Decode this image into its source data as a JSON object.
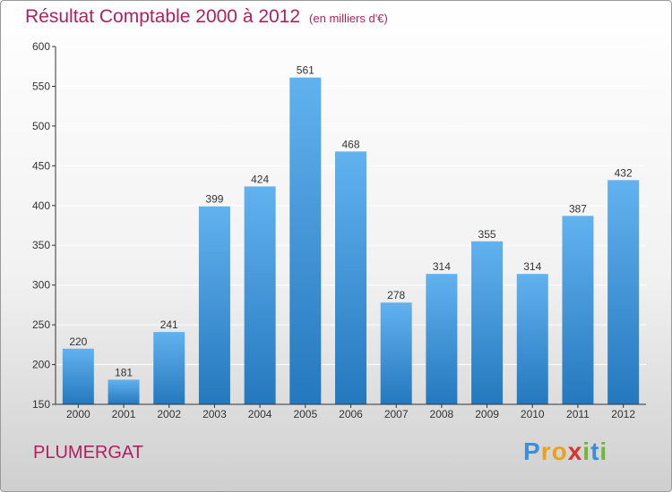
{
  "title": "Résultat Comptable 2000 à 2012",
  "unit_note": "(en milliers d'€)",
  "commune": "PLUMERGAT",
  "logo": {
    "letters": [
      "P",
      "r",
      "o",
      "x",
      "i",
      "t",
      "i"
    ],
    "colors": [
      "#3a8fd8",
      "#e9a11e",
      "#e9a11e",
      "#d9332a",
      "#6fb73c",
      "#3a8fd8",
      "#6fb73c"
    ]
  },
  "colors": {
    "title": "#b0205e",
    "bar_top": "#61b2ef",
    "bar_bottom": "#2478bd",
    "axis": "#333333",
    "grid": "#ffffff"
  },
  "chart_data": {
    "type": "bar",
    "title": "Résultat Comptable 2000 à 2012",
    "categories": [
      "2000",
      "2001",
      "2002",
      "2003",
      "2004",
      "2005",
      "2006",
      "2007",
      "2008",
      "2009",
      "2010",
      "2011",
      "2012"
    ],
    "values": [
      220,
      181,
      241,
      399,
      424,
      561,
      468,
      278,
      314,
      355,
      314,
      387,
      432
    ],
    "data_labels": [
      "220",
      "181",
      "241",
      "399",
      "424",
      "561",
      "468",
      "278",
      "314",
      "355",
      "314",
      "387",
      "432"
    ],
    "ylim": [
      150,
      600
    ],
    "yticks": [
      150,
      200,
      250,
      300,
      350,
      400,
      450,
      500,
      550,
      600
    ],
    "ytick_labels": [
      "150",
      "200",
      "250",
      "300",
      "350",
      "400",
      "450",
      "500",
      "550",
      "600"
    ],
    "grid": true,
    "legend": "none"
  }
}
